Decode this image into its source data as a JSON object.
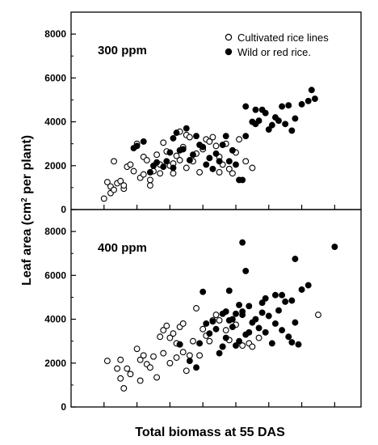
{
  "chart_data": {
    "type": "scatter",
    "xlabel": "Total biomass at 55 DAS",
    "ylabel_main": "Leaf area (cm",
    "ylabel_sup": "2",
    "ylabel_end": " per plant)",
    "legend": {
      "placement": "top-right",
      "items": [
        {
          "label": "Cultivated rice lines",
          "marker": "open-circle"
        },
        {
          "label": "Wild or red rice.",
          "marker": "filled-circle"
        }
      ]
    },
    "panels": [
      {
        "label": "300 ppm",
        "ylim": [
          0,
          9000
        ],
        "yticks": [
          "0",
          "2000",
          "4000",
          "6000",
          "8000"
        ],
        "series": [
          {
            "marker": "open-circle",
            "points": [
              [
                10,
                500
              ],
              [
                11,
                1250
              ],
              [
                12,
                1050
              ],
              [
                12,
                750
              ],
              [
                13,
                900
              ],
              [
                14,
                1200
              ],
              [
                13,
                2200
              ],
              [
                15,
                1300
              ],
              [
                16,
                950
              ],
              [
                16,
                1100
              ],
              [
                17,
                1950
              ],
              [
                18,
                2050
              ],
              [
                19,
                1750
              ],
              [
                20,
                3000
              ],
              [
                21,
                1450
              ],
              [
                22,
                1600
              ],
              [
                22,
                2400
              ],
              [
                23,
                2250
              ],
              [
                24,
                1100
              ],
              [
                24,
                1350
              ],
              [
                25,
                1750
              ],
              [
                26,
                2500
              ],
              [
                27,
                2050
              ],
              [
                27,
                1650
              ],
              [
                28,
                3050
              ],
              [
                29,
                2650
              ],
              [
                30,
                2000
              ],
              [
                31,
                1650
              ],
              [
                31,
                2100
              ],
              [
                32,
                2450
              ],
              [
                33,
                2250
              ],
              [
                33,
                3550
              ],
              [
                34,
                2850
              ],
              [
                35,
                3400
              ],
              [
                35,
                1900
              ],
              [
                36,
                3300
              ],
              [
                37,
                2200
              ],
              [
                38,
                2550
              ],
              [
                39,
                1700
              ],
              [
                40,
                2750
              ],
              [
                41,
                3200
              ],
              [
                42,
                3100
              ],
              [
                43,
                3300
              ],
              [
                44,
                2900
              ],
              [
                45,
                2400
              ],
              [
                45,
                1700
              ],
              [
                46,
                2050
              ],
              [
                47,
                3000
              ],
              [
                48,
                1850
              ],
              [
                49,
                1650
              ],
              [
                50,
                2600
              ],
              [
                51,
                3200
              ],
              [
                53,
                2200
              ],
              [
                55,
                1900
              ]
            ]
          },
          {
            "marker": "filled-circle",
            "points": [
              [
                19,
                2800
              ],
              [
                20,
                2900
              ],
              [
                22,
                3100
              ],
              [
                24,
                1700
              ],
              [
                25,
                2000
              ],
              [
                26,
                2150
              ],
              [
                28,
                1950
              ],
              [
                29,
                2200
              ],
              [
                30,
                2600
              ],
              [
                31,
                3250
              ],
              [
                31,
                1900
              ],
              [
                32,
                3500
              ],
              [
                33,
                2700
              ],
              [
                34,
                2750
              ],
              [
                35,
                3700
              ],
              [
                36,
                2250
              ],
              [
                37,
                2500
              ],
              [
                38,
                3350
              ],
              [
                39,
                2950
              ],
              [
                40,
                2850
              ],
              [
                41,
                2050
              ],
              [
                42,
                2350
              ],
              [
                43,
                1850
              ],
              [
                44,
                2550
              ],
              [
                45,
                2200
              ],
              [
                46,
                2950
              ],
              [
                47,
                3350
              ],
              [
                48,
                2200
              ],
              [
                49,
                2700
              ],
              [
                50,
                2050
              ],
              [
                51,
                1350
              ],
              [
                52,
                1350
              ],
              [
                53,
                3350
              ],
              [
                53,
                4700
              ],
              [
                55,
                4000
              ],
              [
                56,
                3900
              ],
              [
                56,
                4550
              ],
              [
                57,
                4050
              ],
              [
                58,
                4550
              ],
              [
                59,
                4400
              ],
              [
                60,
                3650
              ],
              [
                61,
                3850
              ],
              [
                62,
                4200
              ],
              [
                63,
                4050
              ],
              [
                64,
                4700
              ],
              [
                65,
                3900
              ],
              [
                66,
                4750
              ],
              [
                67,
                3600
              ],
              [
                68,
                4150
              ],
              [
                70,
                4800
              ],
              [
                72,
                4950
              ],
              [
                73,
                5450
              ],
              [
                74,
                5050
              ]
            ]
          }
        ]
      },
      {
        "label": "400 ppm",
        "ylim": [
          0,
          9000
        ],
        "yticks": [
          "0",
          "2000",
          "4000",
          "6000",
          "8000"
        ],
        "series": [
          {
            "marker": "open-circle",
            "points": [
              [
                11,
                2100
              ],
              [
                14,
                1750
              ],
              [
                15,
                2150
              ],
              [
                15,
                1300
              ],
              [
                16,
                850
              ],
              [
                17,
                1750
              ],
              [
                18,
                1500
              ],
              [
                20,
                2650
              ],
              [
                21,
                1200
              ],
              [
                21,
                2150
              ],
              [
                22,
                2350
              ],
              [
                23,
                1950
              ],
              [
                24,
                1800
              ],
              [
                25,
                2300
              ],
              [
                26,
                1350
              ],
              [
                27,
                3200
              ],
              [
                28,
                3500
              ],
              [
                28,
                2450
              ],
              [
                29,
                3700
              ],
              [
                30,
                2000
              ],
              [
                30,
                3150
              ],
              [
                31,
                3350
              ],
              [
                32,
                2250
              ],
              [
                32,
                2900
              ],
              [
                33,
                2850
              ],
              [
                33,
                3650
              ],
              [
                34,
                2500
              ],
              [
                34,
                3800
              ],
              [
                35,
                1650
              ],
              [
                36,
                2350
              ],
              [
                37,
                3000
              ],
              [
                38,
                4500
              ],
              [
                39,
                2350
              ],
              [
                40,
                3550
              ],
              [
                41,
                3250
              ],
              [
                42,
                3000
              ],
              [
                43,
                3950
              ],
              [
                44,
                4200
              ],
              [
                45,
                3950
              ],
              [
                46,
                2750
              ],
              [
                47,
                3500
              ],
              [
                48,
                3050
              ],
              [
                50,
                3750
              ],
              [
                52,
                2800
              ],
              [
                54,
                2900
              ],
              [
                55,
                2750
              ],
              [
                57,
                3150
              ],
              [
                75,
                4200
              ]
            ]
          },
          {
            "marker": "filled-circle",
            "points": [
              [
                33,
                2850
              ],
              [
                36,
                2100
              ],
              [
                38,
                1800
              ],
              [
                39,
                2900
              ],
              [
                40,
                5250
              ],
              [
                41,
                3800
              ],
              [
                42,
                3350
              ],
              [
                43,
                3900
              ],
              [
                44,
                3550
              ],
              [
                45,
                2450
              ],
              [
                46,
                4250
              ],
              [
                46,
                2750
              ],
              [
                47,
                4350
              ],
              [
                47,
                3150
              ],
              [
                48,
                5300
              ],
              [
                48,
                3950
              ],
              [
                49,
                4000
              ],
              [
                49,
                3650
              ],
              [
                50,
                4250
              ],
              [
                50,
                2800
              ],
              [
                51,
                4650
              ],
              [
                51,
                3000
              ],
              [
                52,
                4350
              ],
              [
                52,
                4200
              ],
              [
                52,
                7500
              ],
              [
                53,
                6200
              ],
              [
                53,
                3300
              ],
              [
                54,
                3400
              ],
              [
                54,
                4600
              ],
              [
                55,
                3850
              ],
              [
                56,
                4000
              ],
              [
                57,
                3600
              ],
              [
                58,
                4300
              ],
              [
                58,
                4750
              ],
              [
                59,
                3400
              ],
              [
                59,
                4950
              ],
              [
                60,
                4150
              ],
              [
                61,
                2900
              ],
              [
                62,
                5100
              ],
              [
                62,
                3800
              ],
              [
                63,
                4400
              ],
              [
                64,
                5100
              ],
              [
                64,
                3500
              ],
              [
                65,
                4800
              ],
              [
                66,
                3200
              ],
              [
                67,
                4850
              ],
              [
                67,
                2950
              ],
              [
                68,
                6750
              ],
              [
                68,
                3850
              ],
              [
                69,
                2850
              ],
              [
                70,
                5350
              ],
              [
                72,
                5550
              ],
              [
                80,
                7300
              ]
            ]
          }
        ]
      }
    ]
  }
}
